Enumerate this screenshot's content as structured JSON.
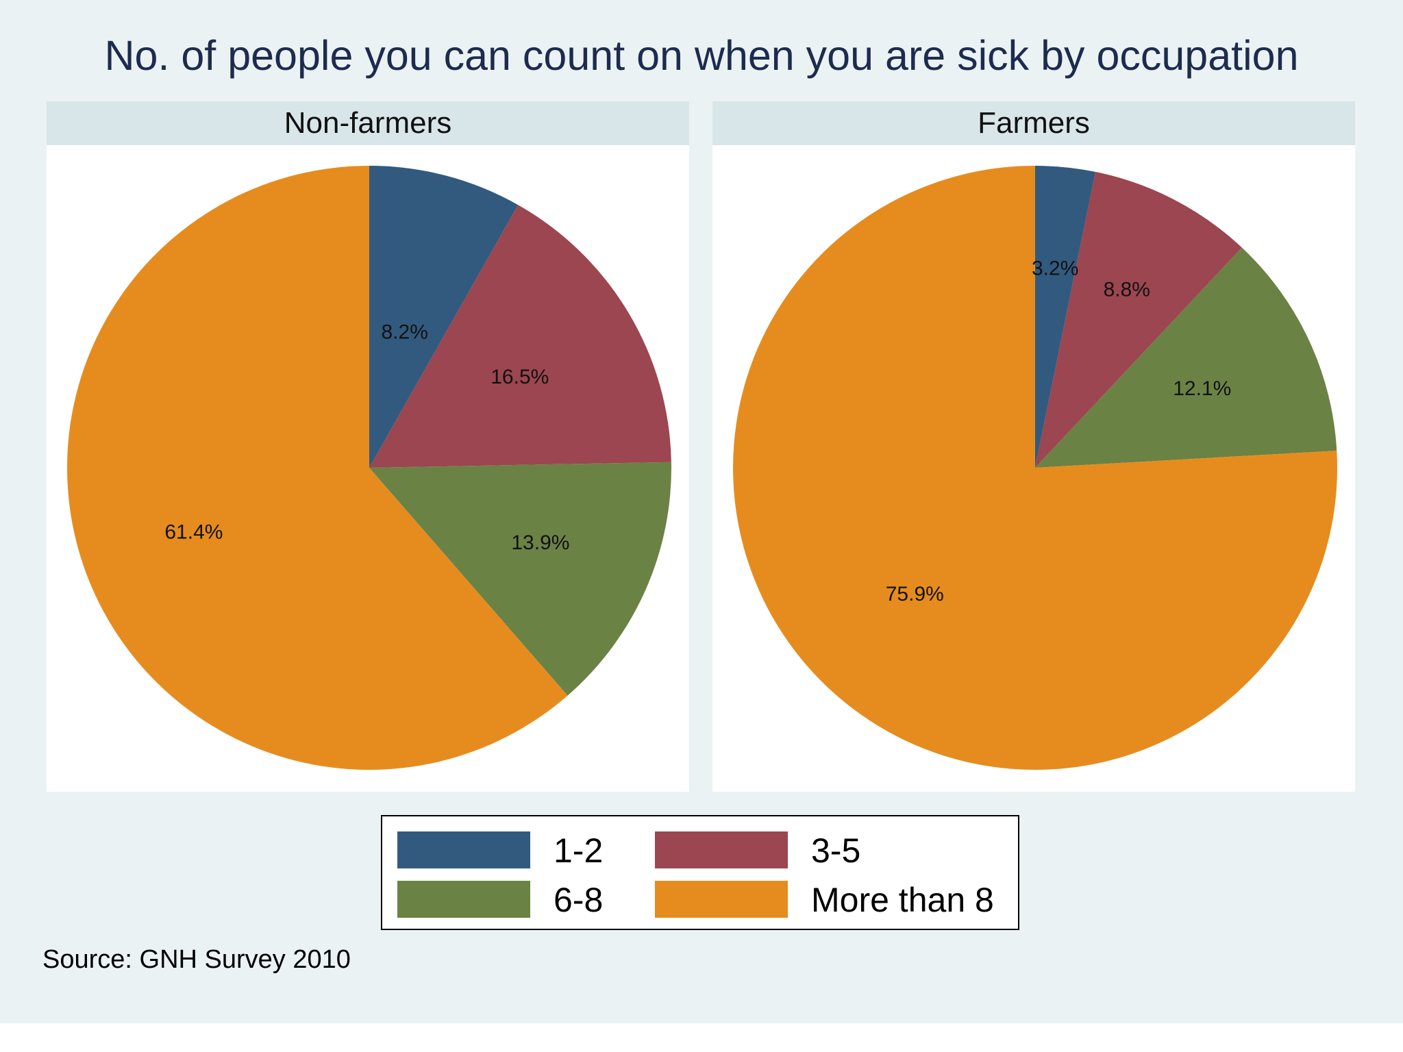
{
  "chart_data": {
    "type": "pie",
    "title": "No. of people you can count on when you are sick by occupation",
    "categories": [
      "1-2",
      "3-5",
      "6-8",
      "More than 8"
    ],
    "colors": [
      "#325a7f",
      "#9b4650",
      "#6b8245",
      "#e68c1e"
    ],
    "panels": [
      {
        "name": "Non-farmers",
        "values": [
          8.2,
          16.5,
          13.9,
          61.4
        ],
        "labels": [
          "8.2%",
          "16.5%",
          "13.9%",
          "61.4%"
        ]
      },
      {
        "name": "Farmers",
        "values": [
          3.2,
          8.8,
          12.1,
          75.9
        ],
        "labels": [
          "3.2%",
          "8.8%",
          "12.1%",
          "75.9%"
        ]
      }
    ],
    "legend": {
      "items": [
        {
          "label": "1-2",
          "color": "#325a7f"
        },
        {
          "label": "3-5",
          "color": "#9b4650"
        },
        {
          "label": "6-8",
          "color": "#6b8245"
        },
        {
          "label": "More than 8",
          "color": "#e68c1e"
        }
      ],
      "placement": "bottom-center"
    },
    "source": "Source: GNH Survey 2010"
  }
}
